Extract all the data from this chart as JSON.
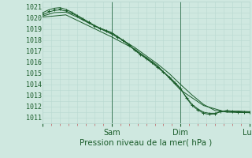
{
  "xlabel": "Pression niveau de la mer( hPa )",
  "ylim": [
    1010.5,
    1021.5
  ],
  "xlim": [
    0,
    72
  ],
  "yticks": [
    1011,
    1012,
    1013,
    1014,
    1015,
    1016,
    1017,
    1018,
    1019,
    1020,
    1021
  ],
  "xtick_positions": [
    0,
    24,
    48,
    72
  ],
  "xtick_labels": [
    "",
    "Sam",
    "Dim",
    "Lun"
  ],
  "background_color": "#cfe8e0",
  "grid_minor_color": "#b8d8d0",
  "grid_major_color": "#6aaa90",
  "line_color": "#1a5c2a",
  "vline_color": "#3d7a5a",
  "tick_color": "#c07070",
  "line1_x": [
    0,
    2,
    4,
    6,
    8,
    10,
    12,
    14,
    16,
    18,
    20,
    22,
    24,
    26,
    28,
    30,
    32,
    34,
    36,
    38,
    40,
    42,
    44,
    46,
    48,
    50,
    52,
    54,
    56,
    58,
    60,
    62,
    64,
    66,
    68,
    70,
    72
  ],
  "line1_y": [
    1020.3,
    1020.55,
    1020.7,
    1020.75,
    1020.65,
    1020.45,
    1020.2,
    1019.9,
    1019.6,
    1019.3,
    1019.05,
    1018.85,
    1018.65,
    1018.3,
    1017.95,
    1017.55,
    1017.1,
    1016.7,
    1016.35,
    1015.95,
    1015.55,
    1015.1,
    1014.65,
    1014.15,
    1013.6,
    1012.8,
    1012.1,
    1011.7,
    1011.4,
    1011.3,
    1011.35,
    1011.55,
    1011.65,
    1011.6,
    1011.55,
    1011.5,
    1011.5
  ],
  "line2_x": [
    0,
    2,
    4,
    6,
    8,
    10,
    12,
    14,
    16,
    18,
    20,
    22,
    24,
    26,
    28,
    30,
    32,
    34,
    36,
    38,
    40,
    42,
    44,
    46,
    48,
    50,
    52,
    54,
    56,
    58,
    60,
    62,
    64,
    66,
    68,
    70,
    72
  ],
  "line2_y": [
    1020.5,
    1020.75,
    1020.9,
    1020.95,
    1020.8,
    1020.55,
    1020.25,
    1019.95,
    1019.65,
    1019.35,
    1019.1,
    1018.9,
    1018.7,
    1018.35,
    1018.0,
    1017.6,
    1017.15,
    1016.75,
    1016.4,
    1016.0,
    1015.6,
    1015.15,
    1014.7,
    1014.2,
    1013.65,
    1012.85,
    1012.2,
    1011.8,
    1011.5,
    1011.4,
    1011.4,
    1011.55,
    1011.6,
    1011.55,
    1011.5,
    1011.5,
    1011.5
  ],
  "line3_x": [
    0,
    4,
    8,
    12,
    16,
    20,
    24,
    28,
    32,
    36,
    40,
    44,
    48,
    52,
    56,
    60,
    64,
    68,
    72
  ],
  "line3_y": [
    1020.2,
    1020.5,
    1020.55,
    1020.1,
    1019.55,
    1019.05,
    1018.55,
    1018.0,
    1017.35,
    1016.6,
    1015.85,
    1015.0,
    1014.0,
    1013.05,
    1012.2,
    1011.65,
    1011.55,
    1011.6,
    1011.55
  ],
  "line4_x": [
    0,
    8,
    16,
    24,
    32,
    40,
    48,
    56,
    64,
    72
  ],
  "line4_y": [
    1020.1,
    1020.3,
    1019.3,
    1018.3,
    1017.2,
    1015.7,
    1013.5,
    1012.1,
    1011.5,
    1011.45
  ],
  "marker_x": [
    0,
    2,
    4,
    6,
    8,
    10,
    12,
    14,
    16,
    18,
    20,
    22,
    24,
    26,
    28,
    30,
    32,
    34,
    36,
    38,
    40,
    42,
    44,
    46,
    48,
    50,
    52,
    54,
    56,
    58,
    60,
    62,
    64,
    66,
    68,
    70,
    72
  ],
  "marker_y": [
    1020.4,
    1020.65,
    1020.8,
    1020.85,
    1020.72,
    1020.5,
    1020.22,
    1019.92,
    1019.62,
    1019.32,
    1019.07,
    1018.87,
    1018.67,
    1018.32,
    1017.97,
    1017.57,
    1017.12,
    1016.72,
    1016.37,
    1015.97,
    1015.57,
    1015.12,
    1014.67,
    1014.17,
    1013.62,
    1012.82,
    1012.15,
    1011.75,
    1011.45,
    1011.35,
    1011.37,
    1011.55,
    1011.62,
    1011.57,
    1011.52,
    1011.5,
    1011.5
  ]
}
